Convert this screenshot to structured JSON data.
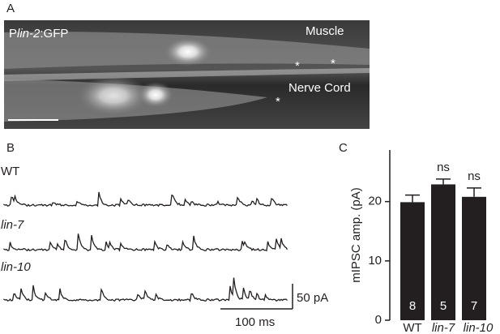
{
  "panel_a": {
    "label": "A",
    "construct": {
      "prefix": "P",
      "gene": "lin-2",
      "suffix": ":GFP"
    },
    "muscle": "Muscle",
    "nerve_cord": "Nerve Cord",
    "asterisks": [
      "*",
      "*",
      "*"
    ]
  },
  "panel_b": {
    "label": "B",
    "traces": [
      "WT",
      "lin-7",
      "lin-10"
    ],
    "scale_current": "50 pA",
    "scale_time": "100 ms"
  },
  "panel_c": {
    "label": "C"
  },
  "chart_data": {
    "type": "bar",
    "ylabel": "mIPSC amp. (pA)",
    "categories": [
      "WT",
      "lin-7",
      "lin-10"
    ],
    "values": [
      19.9,
      22.9,
      20.8
    ],
    "errors": [
      1.2,
      0.9,
      1.5
    ],
    "n": [
      8,
      5,
      7
    ],
    "significance": [
      null,
      "ns",
      "ns"
    ],
    "color": "#231f20",
    "ylim": [
      0,
      28.7
    ],
    "yticks": [
      0,
      10,
      20
    ]
  }
}
